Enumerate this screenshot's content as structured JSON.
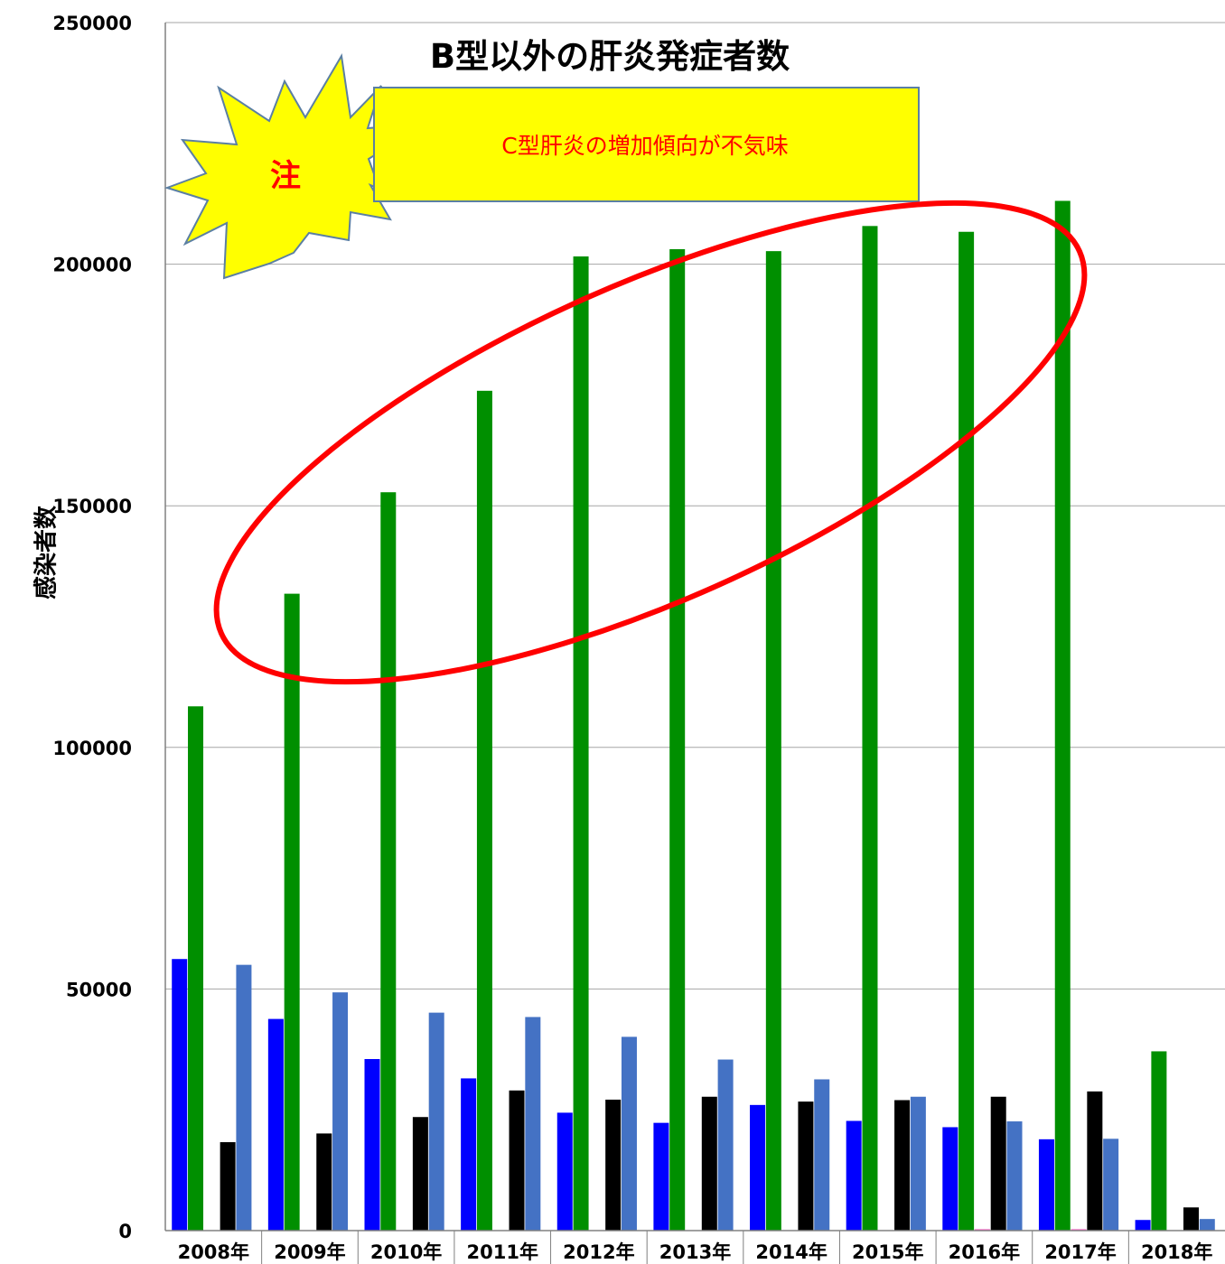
{
  "chart_data": {
    "type": "bar",
    "title": "B型以外の肝炎発症者数",
    "ylabel": "感染者数",
    "xlabel": "",
    "ylim": [
      0,
      250000
    ],
    "yticks": [
      0,
      50000,
      100000,
      150000,
      200000,
      250000
    ],
    "grid": true,
    "categories": [
      "2008年",
      "2009年",
      "2010年",
      "2011年",
      "2012年",
      "2013年",
      "2014年",
      "2015年",
      "2016年",
      "2017年",
      "2018年"
    ],
    "series": [
      {
        "color": "#0000ff",
        "values": [
          56200,
          43800,
          35500,
          31500,
          24400,
          22300,
          26000,
          22700,
          21400,
          18900,
          2200
        ]
      },
      {
        "color": "#008f00",
        "values": [
          108500,
          131800,
          152800,
          173800,
          201600,
          203100,
          202700,
          207900,
          206700,
          213100,
          37100
        ]
      },
      {
        "color": "#ff66cc",
        "values": [
          0,
          0,
          0,
          0,
          0,
          0,
          0,
          0,
          300,
          300,
          0
        ]
      },
      {
        "color": "#000000",
        "values": [
          18300,
          20100,
          23500,
          29000,
          27100,
          27700,
          26700,
          27000,
          27700,
          28800,
          4800
        ]
      },
      {
        "color": "#4472c4",
        "values": [
          55000,
          49300,
          45100,
          44200,
          40100,
          35400,
          31300,
          27700,
          22600,
          19000,
          2400
        ]
      }
    ],
    "annotations": {
      "callout": "C型肝炎の増加傾向が不気味",
      "burst": "注"
    }
  }
}
